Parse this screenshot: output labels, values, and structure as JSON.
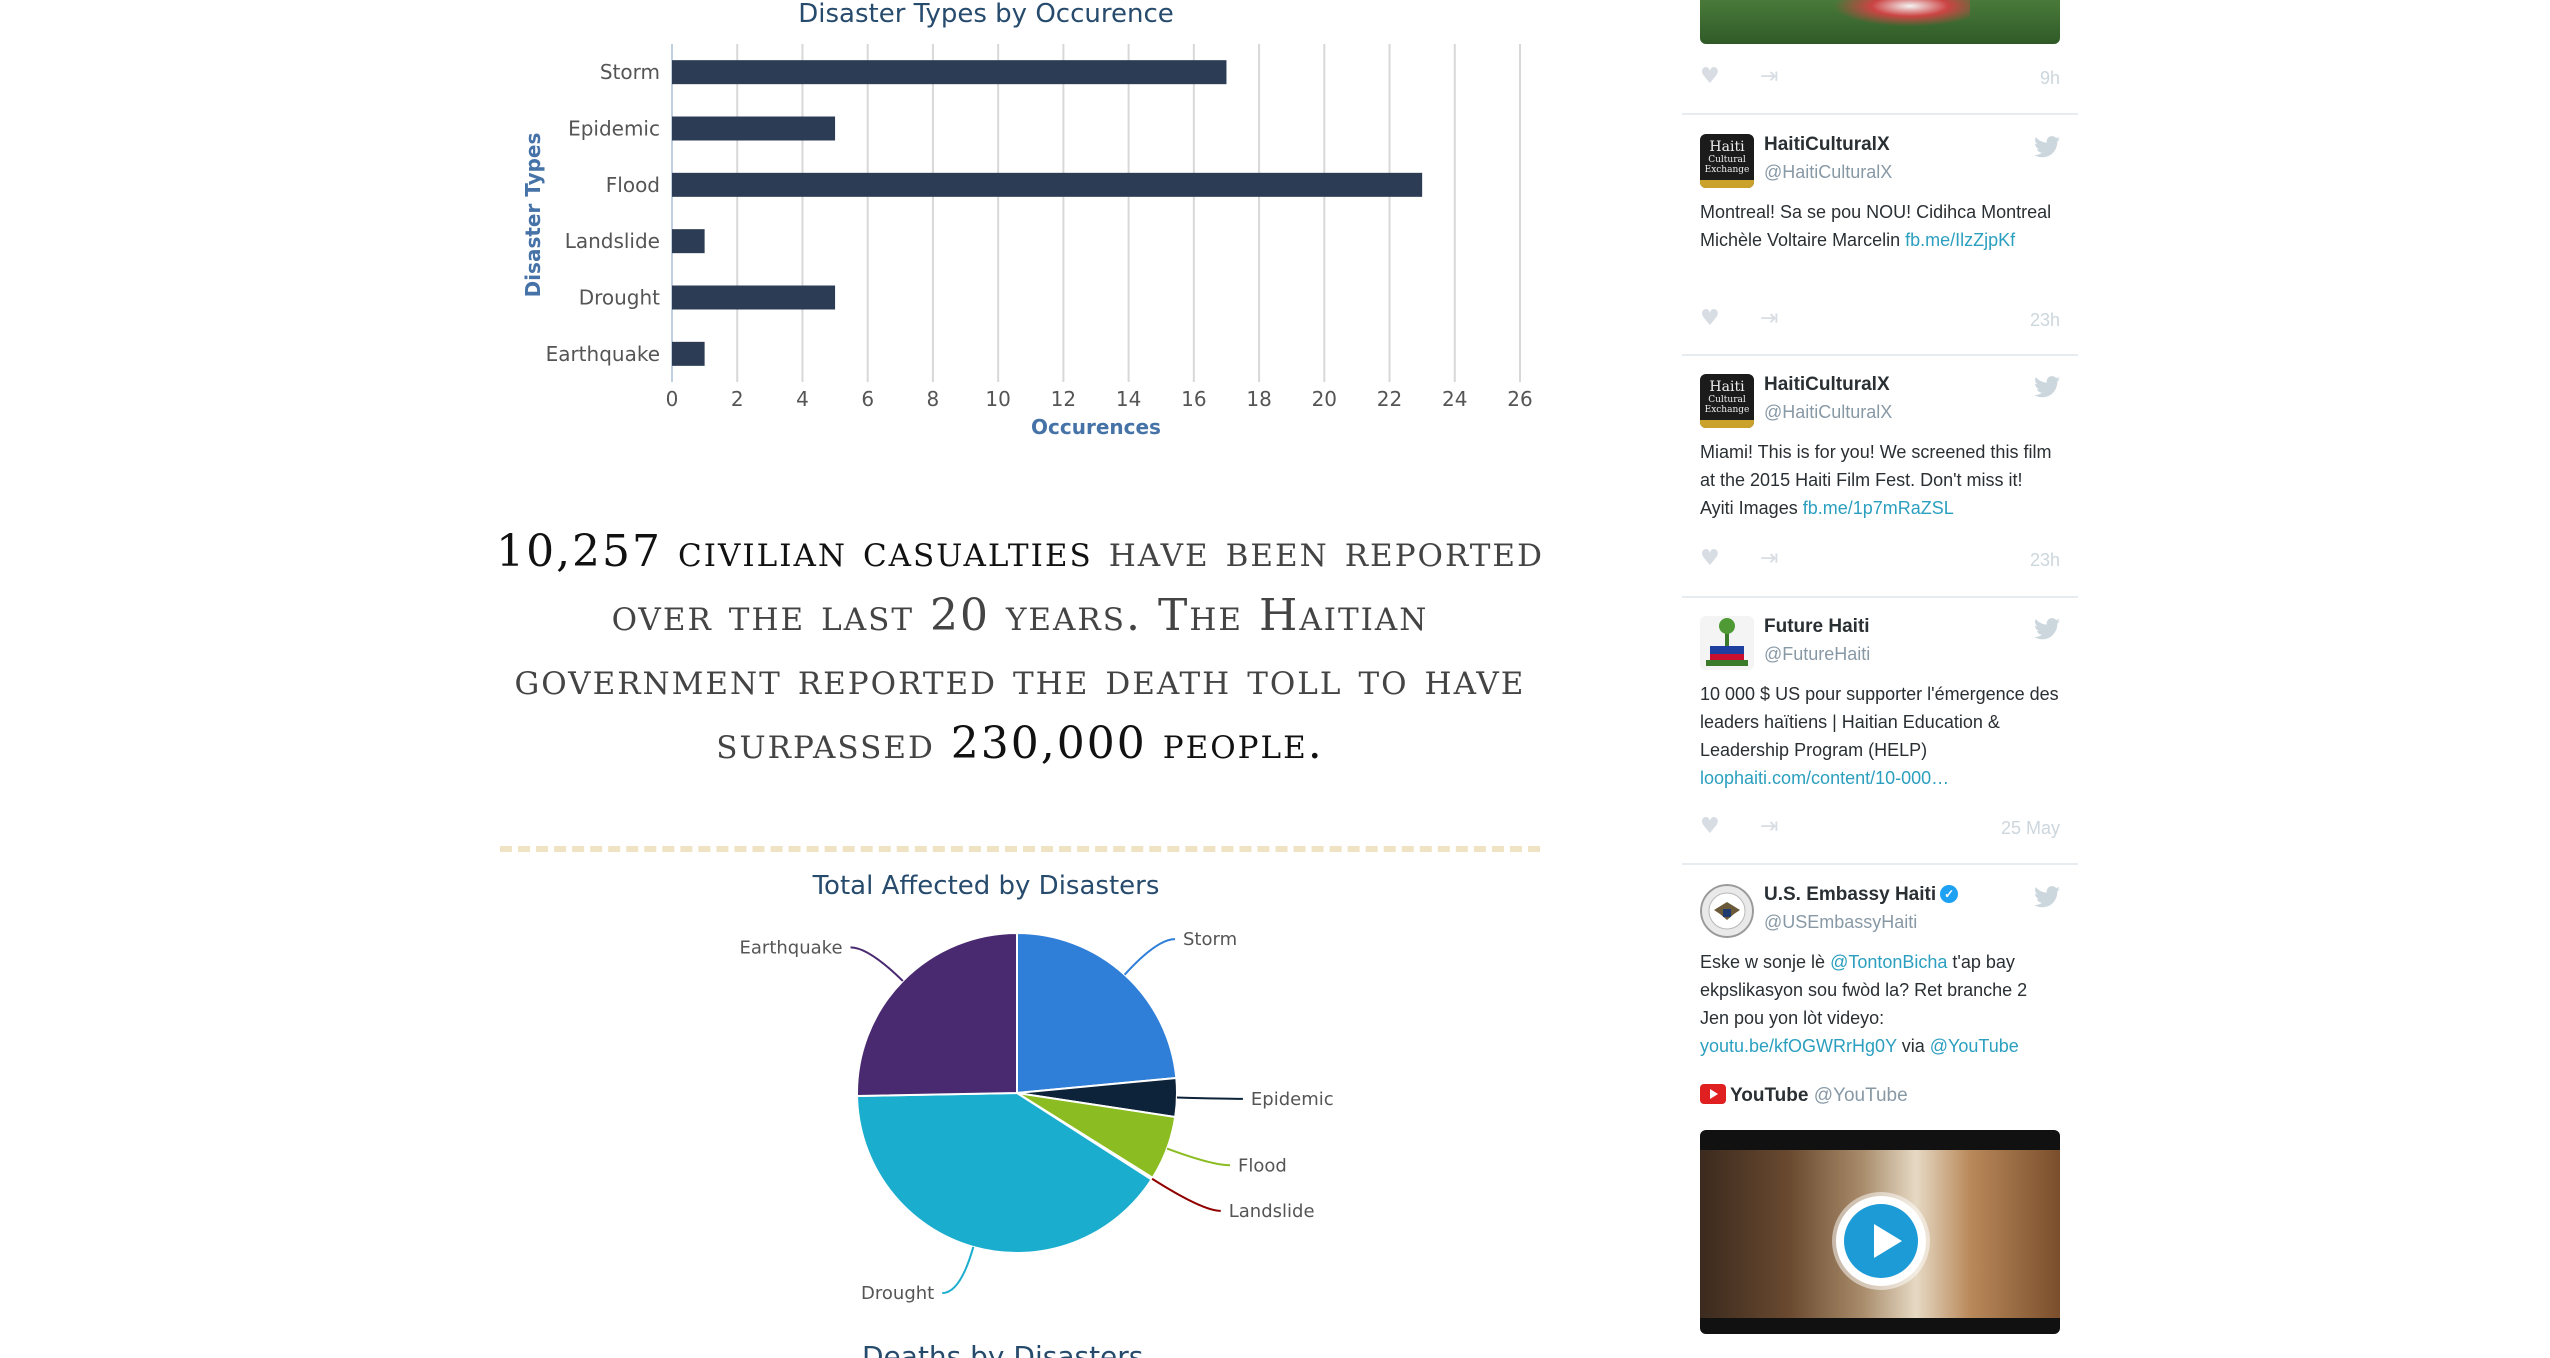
{
  "bar_chart": {
    "title": "Disaster Types by Occurence",
    "xlabel": "Occurences",
    "ylabel": "Disaster Types"
  },
  "casualties": {
    "count_text": "10,257 civilian casualties",
    "middle_text": " have been reported over the last 20 years. The Haitian government reported the death toll to have surpassed ",
    "toll_text": "230,000 people."
  },
  "pie_chart": {
    "title": "Total Affected by Disasters"
  },
  "next_chart_title": "Deaths by Disasters",
  "chart_data": [
    {
      "type": "bar",
      "orientation": "horizontal",
      "title": "Disaster Types by Occurence",
      "xlabel": "Occurences",
      "ylabel": "Disaster Types",
      "categories": [
        "Storm",
        "Epidemic",
        "Flood",
        "Landslide",
        "Drought",
        "Earthquake"
      ],
      "values": [
        17,
        5,
        23,
        1,
        5,
        1
      ],
      "xlim": [
        0,
        26
      ],
      "xticks": [
        0,
        2,
        4,
        6,
        8,
        10,
        12,
        14,
        16,
        18,
        20,
        22,
        24,
        26
      ],
      "grid": true,
      "color": "#2b3c54"
    },
    {
      "type": "pie",
      "title": "Total Affected by Disasters",
      "categories": [
        "Storm",
        "Epidemic",
        "Flood",
        "Landslide",
        "Drought",
        "Earthquake"
      ],
      "values": [
        23.5,
        3.9,
        6.5,
        0.2,
        40.6,
        25.3
      ],
      "colors": [
        "#2f7ed8",
        "#0d233a",
        "#8bbc21",
        "#910000",
        "#1aadce",
        "#492970"
      ]
    }
  ],
  "feed": {
    "tweets": [
      {
        "time": "9h"
      },
      {
        "name": "HaitiCulturalX",
        "handle": "@HaitiCulturalX",
        "avatar_text_1": "Haiti",
        "avatar_text_2": "Cultural",
        "avatar_text_3": "Exchange",
        "body": "Montreal! Sa se pou NOU! Cidihca Montreal Michèle Voltaire Marcelin ",
        "link": "fb.me/IlzZjpKf",
        "time": "23h"
      },
      {
        "name": "HaitiCulturalX",
        "handle": "@HaitiCulturalX",
        "avatar_text_1": "Haiti",
        "avatar_text_2": "Cultural",
        "avatar_text_3": "Exchange",
        "body": "Miami! This is for you! We screened this film at the 2015 Haiti Film Fest. Don't miss it! Ayiti Images ",
        "link": "fb.me/1p7mRaZSL",
        "time": "23h"
      },
      {
        "name": "Future Haiti",
        "handle": "@FutureHaiti",
        "body": "10 000 $ US pour supporter l'émergence des leaders haïtiens | Haitian Education & Leadership Program (HELP) ",
        "link": "loophaiti.com/content/10-000…",
        "time": "25 May"
      },
      {
        "name": "U.S. Embassy Haiti",
        "handle": "@USEmbassyHaiti",
        "body_1": "Eske w sonje lè ",
        "mention": "@TontonBicha",
        "body_2": " t'ap bay ekpslikasyon sou fwòd la? Ret branche 2 Jen pou yon lòt videyo: ",
        "link": "youtu.be/kfOGWRrHg0Y",
        "via": " via ",
        "via_link": "@YouTube",
        "card_name": "YouTube",
        "card_handle": "@YouTube"
      }
    ],
    "icons": {
      "like": "heart-icon",
      "share": "share-icon",
      "twitter": "twitter-bird-icon",
      "play": "play-icon",
      "verified": "verified-badge-icon"
    }
  }
}
